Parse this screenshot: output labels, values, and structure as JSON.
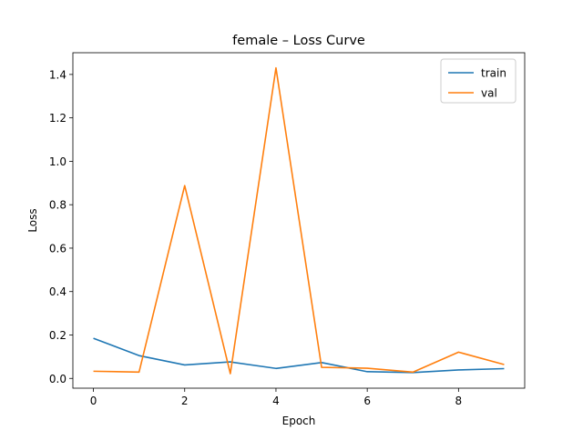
{
  "chart_data": {
    "type": "line",
    "title": "female – Loss Curve",
    "xlabel": "Epoch",
    "ylabel": "Loss",
    "x": [
      0,
      1,
      2,
      3,
      4,
      5,
      6,
      7,
      8,
      9
    ],
    "xlim": [
      -0.45,
      9.45
    ],
    "ylim": [
      -0.045,
      1.5
    ],
    "xticks": [
      0,
      2,
      4,
      6,
      8
    ],
    "yticks": [
      0.0,
      0.2,
      0.4,
      0.6,
      0.8,
      1.0,
      1.2,
      1.4
    ],
    "grid": false,
    "legend_position": "top-right",
    "series": [
      {
        "name": "train",
        "color": "#1f77b4",
        "values": [
          0.185,
          0.105,
          0.062,
          0.076,
          0.046,
          0.073,
          0.031,
          0.027,
          0.039,
          0.045
        ]
      },
      {
        "name": "val",
        "color": "#ff7f0e",
        "values": [
          0.033,
          0.029,
          0.888,
          0.022,
          1.43,
          0.051,
          0.047,
          0.029,
          0.121,
          0.064
        ]
      }
    ]
  }
}
